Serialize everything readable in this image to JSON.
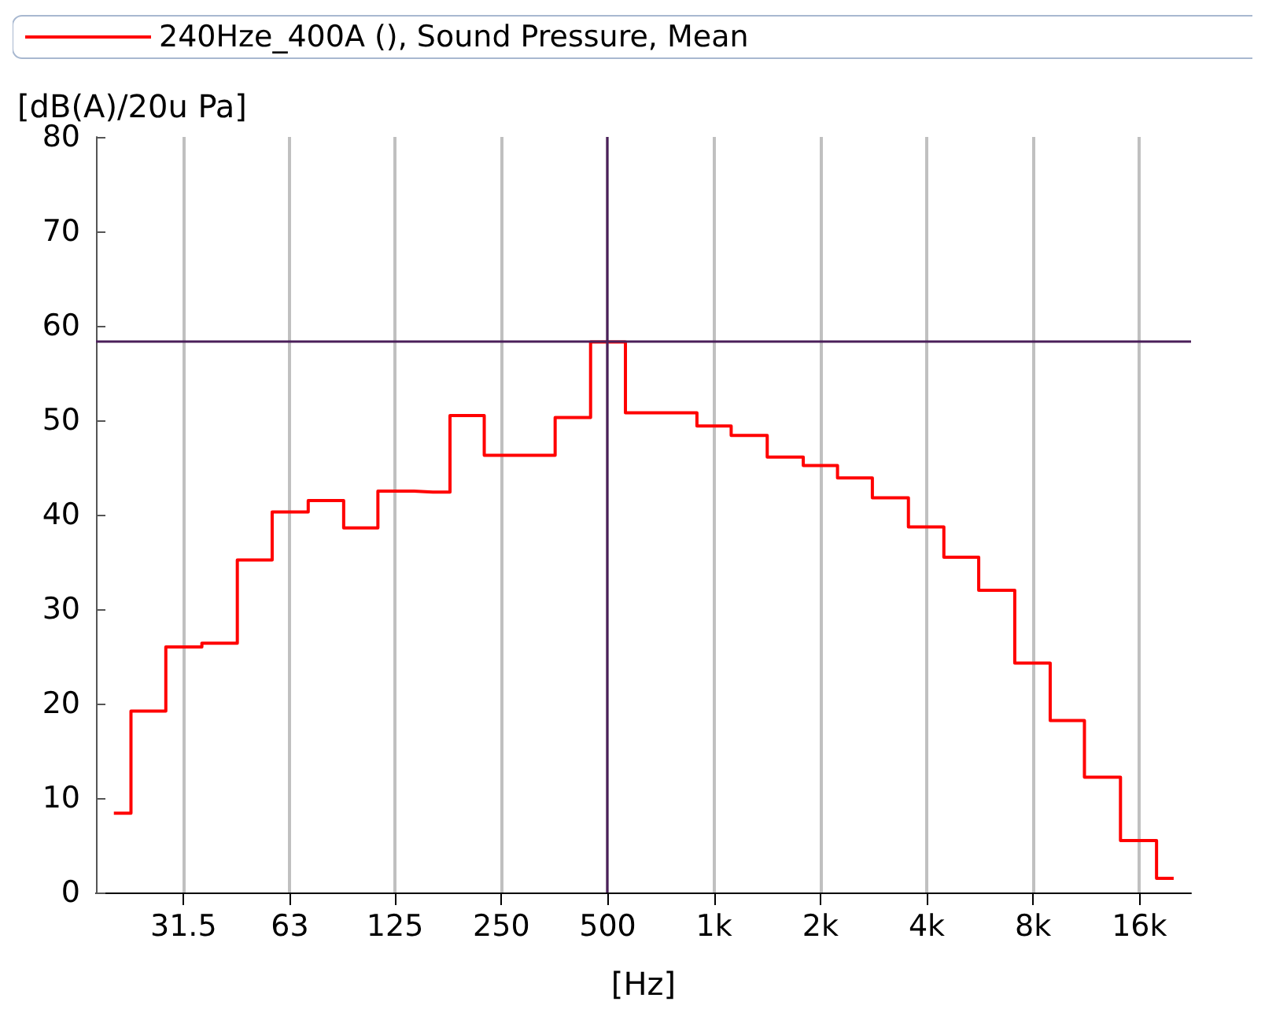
{
  "chart_data": {
    "type": "step",
    "x": [
      20,
      25,
      31.5,
      40,
      50,
      63,
      80,
      100,
      125,
      160,
      200,
      250,
      315,
      400,
      500,
      630,
      800,
      1000,
      1250,
      1600,
      2000,
      2500,
      3150,
      4000,
      5000,
      6300,
      8000,
      10000,
      12500,
      16000,
      20000
    ],
    "series": [
      {
        "name": "240Hze_400A (), Sound Pressure, Mean",
        "color": "#ff0000",
        "values": [
          8.4,
          19.2,
          26.0,
          26.4,
          35.2,
          40.3,
          41.5,
          38.6,
          42.5,
          42.4,
          50.5,
          46.3,
          46.3,
          50.3,
          58.3,
          50.8,
          50.8,
          49.4,
          48.4,
          46.1,
          45.2,
          43.9,
          41.8,
          38.7,
          35.5,
          32.0,
          24.3,
          18.2,
          12.2,
          5.5,
          1.5
        ]
      }
    ],
    "log": "x",
    "xlim": [
      17.8,
      22400
    ],
    "xticks": [
      31.5,
      63,
      125,
      250,
      500,
      {
        "value": 1000,
        "label": "1k"
      },
      {
        "value": 2000,
        "label": "2k"
      },
      {
        "value": 4000,
        "label": "4k"
      },
      {
        "value": 8000,
        "label": "8k"
      },
      {
        "value": 16000,
        "label": "16k"
      }
    ],
    "ylim": [
      0,
      80
    ],
    "yticks": [
      0,
      10,
      20,
      30,
      40,
      50,
      60,
      70,
      80
    ],
    "xlabel": "[Hz]",
    "ylabel": "[dB(A)/20u Pa]",
    "grid": "x",
    "legend": "top",
    "ref_lines": [
      {
        "axis": "y",
        "value": 58.4,
        "color": "#4b1f5a"
      },
      {
        "axis": "x",
        "value": 500,
        "color": "#4b1f5a"
      }
    ]
  }
}
